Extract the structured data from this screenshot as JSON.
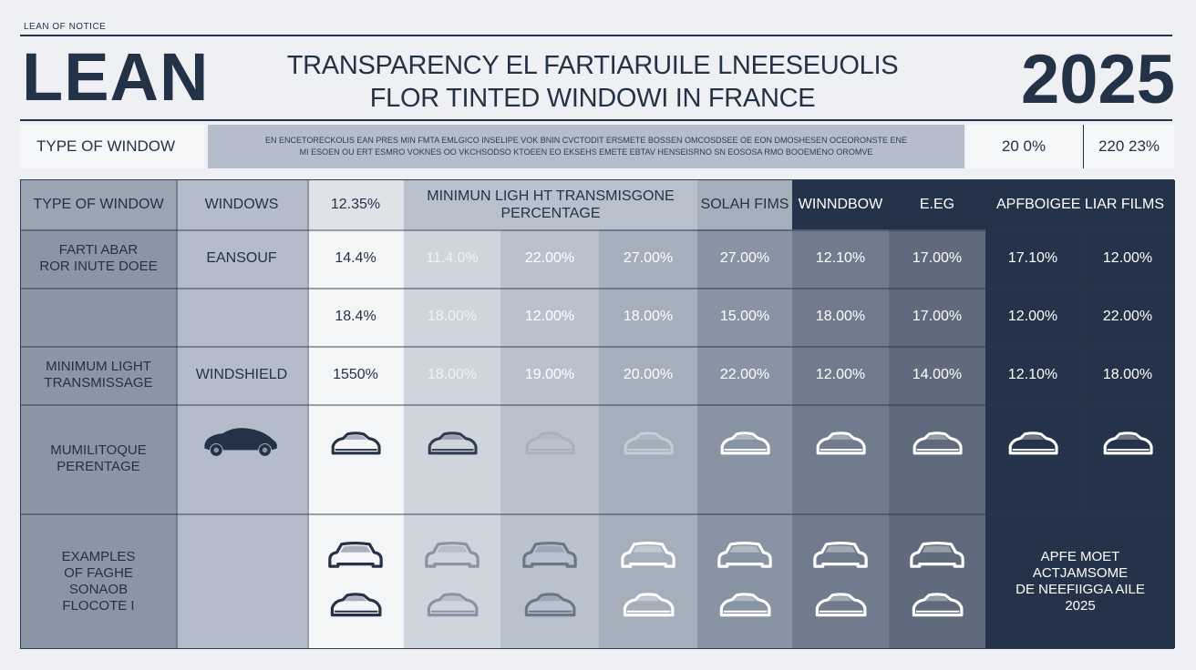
{
  "header": {
    "small_label": "LEAN OF NOTICE",
    "brand": "LEAN",
    "title_line1": "TRANSPARENCY EL FARTIARUILE LNEESEUOLIS",
    "title_line2": "FLOR TINTED WINDOWI IN FRANCE",
    "year": "2025"
  },
  "subheader": {
    "left_label": "TYPE OF WINDOW",
    "mid_line1": "EN ENCETORECKOLIS EAN PRES MIN FMTA EMLGICO INSELIPE VOK BNIN CVCTODIT ERSMETE BOSSEN OMCOSDSEE OE EON DMOSHESEN OCEORONSTE ENE",
    "mid_line2": "MI ESOEN OU ERT ESMRO VOKNES OO VKCHSODSO KTOEEN EO EKSEHS EMETE EBTAV HENSEISRNO SN EOSOSA RMO BOOEMENO OROMVE",
    "right1": "20 0%",
    "right2": "220 23%"
  },
  "table": {
    "header_row": {
      "type_label": "TYPE OF WINDOW",
      "windows_label": "WINDOWS",
      "pct_label": "12.35%",
      "minimum_label": "MINIMUN LIGH HT TRANSMISGONE PERCENTAGE",
      "solar_label": "SOLAH FIMS",
      "window_label": "WINNDBOW",
      "eg_label": "E.EG",
      "approved_label": "APFBOIGEE LIAR FILMS"
    },
    "rows": [
      {
        "label": "FARTI ABAR\nROR INUTE DOEE",
        "window": "EANSOUF",
        "values": [
          "14.4%",
          "11.4.0%",
          "22.00%",
          "27.00%",
          "27.00%",
          "12.10%",
          "17.00%",
          "17.10%",
          "12.00%"
        ]
      },
      {
        "label": "",
        "window": "",
        "values": [
          "18.4%",
          "18.00%",
          "12.00%",
          "18.00%",
          "15.00%",
          "18.00%",
          "17.00%",
          "12.00%",
          "22.00%"
        ]
      },
      {
        "label": "MINIMUM LIGHT\nTRANSMISSAGE",
        "window": "WINDSHIELD",
        "values": [
          "1550%",
          "18.00%",
          "19.00%",
          "20.00%",
          "22.00%",
          "12.00%",
          "14.00%",
          "12.10%",
          "18.00%"
        ]
      }
    ],
    "icon_row_label": "MUMILITOQUE\nPERENTAGE",
    "examples_label": "EXAMPLES\nOF FAGHE\nSONAOB\nFLOCOTE I",
    "approved_note": "APFE MOET\nACTJAMSOME\nDE NEEFIIGGA AILE\n2025"
  },
  "colors": {
    "navy": "#243248",
    "slate": "#6b7787",
    "pale": "#eef0f3"
  }
}
